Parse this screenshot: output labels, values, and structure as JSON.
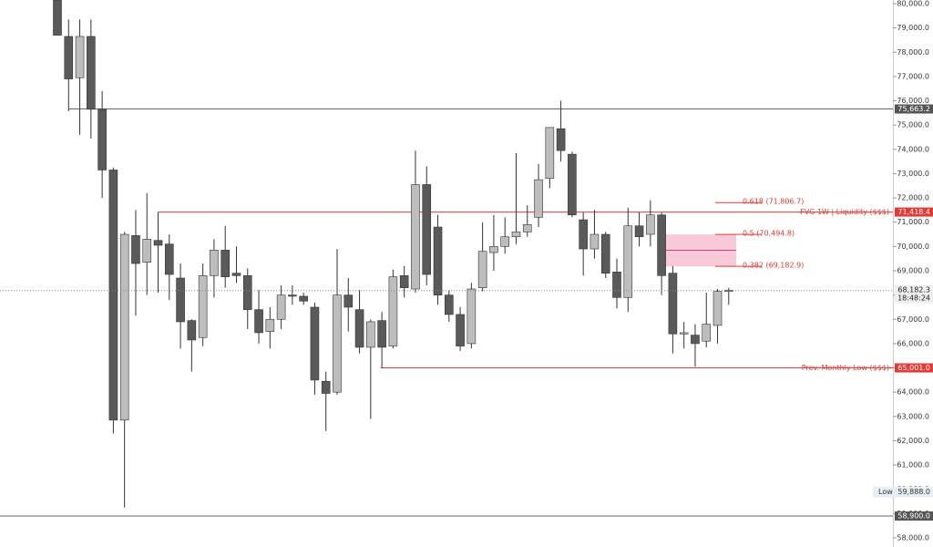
{
  "chart_data": {
    "type": "candlestick",
    "ylim": [
      58000,
      80000
    ],
    "yticks": [
      {
        "value": 58000,
        "label": "58,000.0"
      },
      {
        "value": 59000,
        "label": "59,000.0"
      },
      {
        "value": 60000,
        "label": "60,000.0"
      },
      {
        "value": 61000,
        "label": "61,000.0"
      },
      {
        "value": 62000,
        "label": "62,000.0"
      },
      {
        "value": 63000,
        "label": "63,000.0"
      },
      {
        "value": 64000,
        "label": "64,000.0"
      },
      {
        "value": 65000,
        "label": "65,000.0"
      },
      {
        "value": 66000,
        "label": "66,000.0"
      },
      {
        "value": 67000,
        "label": "67,000.0"
      },
      {
        "value": 68000,
        "label": "68,000.0"
      },
      {
        "value": 69000,
        "label": "69,000.0"
      },
      {
        "value": 70000,
        "label": "70,000.0"
      },
      {
        "value": 71000,
        "label": "71,000.0"
      },
      {
        "value": 72000,
        "label": "72,000.0"
      },
      {
        "value": 73000,
        "label": "73,000.0"
      },
      {
        "value": 74000,
        "label": "74,000.0"
      },
      {
        "value": 75000,
        "label": "75,000.0"
      },
      {
        "value": 76000,
        "label": "76,000.0"
      },
      {
        "value": 77000,
        "label": "77,000.0"
      },
      {
        "value": 78000,
        "label": "78,000.0"
      },
      {
        "value": 79000,
        "label": "79,000.0"
      },
      {
        "value": 80000,
        "label": "80,000.0"
      }
    ],
    "up_color": "#bdbdbd",
    "down_color": "#5a5a5a",
    "wick_color": "#333333",
    "open": [
      80150,
      78650,
      76950,
      78650,
      75650,
      73150,
      62850,
      70450,
      69350,
      70250,
      70100,
      68700,
      66950,
      66250,
      68800,
      69850,
      68900,
      68800,
      67400,
      66500,
      67000,
      68000,
      67950,
      67500,
      64450,
      64000,
      68000,
      67400,
      65850,
      66950,
      65900,
      68800,
      68250,
      72550,
      70800,
      68000,
      67200,
      66000,
      68300,
      69750,
      70000,
      70400,
      70600,
      71200,
      72800,
      74850,
      73800,
      71100,
      69900,
      70500,
      68950,
      67900,
      70850,
      70500,
      71300,
      68900,
      66400,
      66350,
      66100,
      66750,
      68150
    ],
    "high": [
      80200,
      79350,
      79350,
      79350,
      76400,
      73250,
      70600,
      71500,
      72200,
      71400,
      70500,
      69300,
      67000,
      69300,
      70300,
      70850,
      70000,
      69100,
      68200,
      67500,
      68400,
      68400,
      68100,
      67700,
      64850,
      69900,
      68700,
      68200,
      67000,
      67300,
      69050,
      69200,
      73950,
      73300,
      71300,
      68200,
      67500,
      68500,
      71000,
      71300,
      71200,
      73850,
      71700,
      73400,
      74900,
      76000,
      73900,
      71400,
      71500,
      70600,
      69500,
      71600,
      71400,
      71900,
      71400,
      69200,
      66900,
      66800,
      68100,
      68250,
      68300
    ],
    "low": [
      78700,
      75570,
      74600,
      74450,
      72000,
      62300,
      59250,
      67150,
      68000,
      68100,
      67800,
      65800,
      64850,
      65900,
      67900,
      68300,
      68500,
      66600,
      66000,
      65800,
      66600,
      67600,
      67600,
      63900,
      62400,
      63900,
      66500,
      65600,
      62900,
      65000,
      65800,
      67900,
      68100,
      68400,
      67600,
      66900,
      65700,
      65800,
      68150,
      69000,
      69700,
      70100,
      70400,
      70800,
      72400,
      73500,
      71200,
      68800,
      69500,
      68700,
      67450,
      67300,
      70000,
      70000,
      68000,
      65600,
      65800,
      65050,
      65850,
      66000,
      67600
    ],
    "close": [
      78700,
      76900,
      78650,
      75650,
      73150,
      62850,
      70500,
      69300,
      70300,
      70050,
      68850,
      66900,
      66150,
      68800,
      69850,
      68750,
      68800,
      67400,
      66450,
      67000,
      68000,
      67950,
      67750,
      64500,
      63950,
      68000,
      67500,
      65850,
      66900,
      65850,
      68750,
      68300,
      72550,
      68850,
      68000,
      67200,
      65900,
      68250,
      69800,
      70000,
      70400,
      70600,
      70900,
      72750,
      74900,
      73950,
      71300,
      69900,
      70500,
      68900,
      67900,
      70850,
      70400,
      71300,
      68800,
      66400,
      66450,
      66000,
      66800,
      68150,
      68200
    ],
    "level_high": {
      "value": 75663.2,
      "tag": "75,663.2"
    },
    "fvg": {
      "value": 71418.4,
      "tag": "71,418.4",
      "label": "FVG 1W | Liquidity ($$$)",
      "color": "#e53935"
    },
    "monthly_low": {
      "value": 65001.0,
      "tag": "65,001.0",
      "label": "Prev. Monthly Low ($$$)",
      "color": "#e53935"
    },
    "level_low": {
      "value": 58900,
      "tag": "58,900.0"
    },
    "fib": [
      {
        "value": 71806.7,
        "label": "0.618 (71,806.7)"
      },
      {
        "value": 70494.8,
        "label": "0.5 (70,494.8)"
      },
      {
        "value": 69182.9,
        "label": "0.382 (69,182.9)"
      }
    ],
    "zone_color": "#f8bbd0",
    "current": {
      "value": 68182.3,
      "label": "68,182.3",
      "timer": "18:48:24"
    },
    "low_marker": {
      "text": "Low",
      "value": 59888.0,
      "tag": "59,888.0"
    }
  }
}
